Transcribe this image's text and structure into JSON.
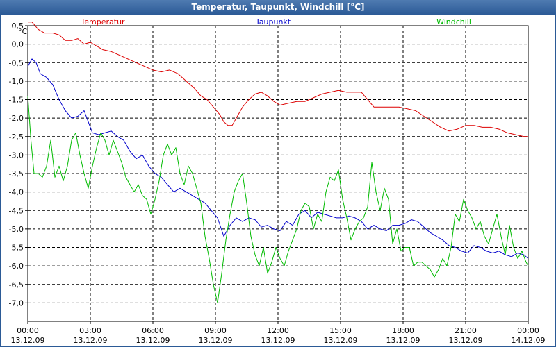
{
  "chart_data": {
    "type": "line",
    "title": "Temperatur, Taupunkt, Windchill [°C]",
    "ylabel": "°C",
    "ylim": [
      -7.5,
      0.5
    ],
    "yticks": [
      0.5,
      0.0,
      -0.5,
      -1.0,
      -1.5,
      -2.0,
      -2.5,
      -3.0,
      -3.5,
      -4.0,
      -4.5,
      -5.0,
      -5.5,
      -6.0,
      -6.5,
      -7.0
    ],
    "ytick_labels": [
      "0,5",
      "0,0",
      "-0,5",
      "-1,0",
      "-1,5",
      "-2,0",
      "-2,5",
      "-3,0",
      "-3,5",
      "-4,0",
      "-4,5",
      "-5,0",
      "-5,5",
      "-6,0",
      "-6,5",
      "-7,0"
    ],
    "xlim": [
      0,
      24
    ],
    "x_ticks": [
      {
        "x": 0,
        "time": "00:00",
        "date": "13.12.09"
      },
      {
        "x": 3,
        "time": "03:00",
        "date": "13.12.09"
      },
      {
        "x": 6,
        "time": "06:00",
        "date": "13.12.09"
      },
      {
        "x": 9,
        "time": "09:00",
        "date": "13.12.09"
      },
      {
        "x": 12,
        "time": "12:00",
        "date": "13.12.09"
      },
      {
        "x": 15,
        "time": "15:00",
        "date": "13.12.09"
      },
      {
        "x": 18,
        "time": "18:00",
        "date": "13.12.09"
      },
      {
        "x": 21,
        "time": "21:00",
        "date": "13.12.09"
      },
      {
        "x": 24,
        "time": "00:00",
        "date": "14.12.09"
      }
    ],
    "grid": true,
    "series": [
      {
        "name": "Temperatur",
        "color": "#dd0000",
        "x": [
          0,
          0.2,
          0.5,
          0.8,
          1.2,
          1.5,
          1.8,
          2.1,
          2.4,
          2.7,
          3.0,
          3.3,
          3.6,
          4.0,
          4.4,
          4.8,
          5.2,
          5.6,
          6.0,
          6.4,
          6.8,
          7.2,
          7.6,
          8.0,
          8.3,
          8.6,
          8.9,
          9.2,
          9.4,
          9.6,
          9.8,
          10.0,
          10.3,
          10.6,
          10.9,
          11.2,
          11.5,
          11.8,
          12.1,
          12.5,
          12.9,
          13.3,
          13.7,
          14.1,
          14.5,
          14.9,
          15.3,
          15.7,
          16.0,
          16.3,
          16.6,
          17.0,
          17.4,
          17.8,
          18.2,
          18.6,
          19.0,
          19.4,
          19.8,
          20.2,
          20.6,
          21.0,
          21.4,
          21.8,
          22.2,
          22.6,
          23.0,
          23.4,
          23.8,
          24.0
        ],
        "values": [
          0.6,
          0.6,
          0.4,
          0.3,
          0.3,
          0.25,
          0.1,
          0.1,
          0.15,
          0.0,
          0.05,
          -0.05,
          -0.15,
          -0.2,
          -0.3,
          -0.4,
          -0.5,
          -0.6,
          -0.7,
          -0.75,
          -0.7,
          -0.8,
          -1.0,
          -1.2,
          -1.4,
          -1.5,
          -1.7,
          -1.9,
          -2.1,
          -2.2,
          -2.2,
          -2.0,
          -1.7,
          -1.5,
          -1.35,
          -1.3,
          -1.4,
          -1.55,
          -1.65,
          -1.6,
          -1.55,
          -1.55,
          -1.45,
          -1.35,
          -1.3,
          -1.25,
          -1.3,
          -1.3,
          -1.3,
          -1.5,
          -1.7,
          -1.7,
          -1.7,
          -1.7,
          -1.75,
          -1.8,
          -1.95,
          -2.1,
          -2.25,
          -2.35,
          -2.3,
          -2.2,
          -2.2,
          -2.25,
          -2.25,
          -2.3,
          -2.4,
          -2.45,
          -2.5,
          -2.5
        ]
      },
      {
        "name": "Taupunkt",
        "color": "#0000cc",
        "x": [
          0,
          0.2,
          0.4,
          0.6,
          0.9,
          1.2,
          1.5,
          1.8,
          2.1,
          2.4,
          2.7,
          2.9,
          3.1,
          3.4,
          3.7,
          4.0,
          4.3,
          4.6,
          4.9,
          5.2,
          5.5,
          5.8,
          6.1,
          6.4,
          6.7,
          7.0,
          7.3,
          7.6,
          7.9,
          8.2,
          8.5,
          8.8,
          9.1,
          9.4,
          9.7,
          10.0,
          10.3,
          10.6,
          10.9,
          11.2,
          11.5,
          11.8,
          12.1,
          12.4,
          12.7,
          13.0,
          13.3,
          13.6,
          13.9,
          14.2,
          14.5,
          14.8,
          15.1,
          15.4,
          15.7,
          16.0,
          16.3,
          16.6,
          16.9,
          17.2,
          17.5,
          17.8,
          18.1,
          18.4,
          18.7,
          19.0,
          19.3,
          19.6,
          19.9,
          20.2,
          20.5,
          20.8,
          21.1,
          21.4,
          21.7,
          22.0,
          22.3,
          22.6,
          22.9,
          23.2,
          23.5,
          23.8,
          24.0
        ],
        "values": [
          -0.6,
          -0.4,
          -0.5,
          -0.8,
          -0.9,
          -1.1,
          -1.5,
          -1.8,
          -2.0,
          -1.95,
          -1.8,
          -2.1,
          -2.4,
          -2.45,
          -2.4,
          -2.35,
          -2.5,
          -2.6,
          -2.9,
          -3.1,
          -3.0,
          -3.3,
          -3.5,
          -3.6,
          -3.8,
          -4.0,
          -3.9,
          -4.0,
          -4.1,
          -4.2,
          -4.3,
          -4.5,
          -4.7,
          -5.2,
          -4.9,
          -4.7,
          -4.8,
          -4.7,
          -4.75,
          -4.95,
          -4.9,
          -5.0,
          -5.05,
          -4.8,
          -4.9,
          -4.6,
          -4.5,
          -4.7,
          -4.55,
          -4.6,
          -4.65,
          -4.7,
          -4.7,
          -4.65,
          -4.7,
          -4.8,
          -5.0,
          -4.9,
          -5.0,
          -5.05,
          -4.9,
          -4.9,
          -4.85,
          -4.75,
          -4.8,
          -4.95,
          -5.1,
          -5.2,
          -5.3,
          -5.45,
          -5.5,
          -5.6,
          -5.65,
          -5.45,
          -5.5,
          -5.6,
          -5.65,
          -5.6,
          -5.7,
          -5.75,
          -5.65,
          -5.7,
          -5.8
        ]
      },
      {
        "name": "Windchill",
        "color": "#00bb00",
        "x": [
          0,
          0.15,
          0.3,
          0.5,
          0.7,
          0.9,
          1.1,
          1.3,
          1.5,
          1.7,
          1.9,
          2.1,
          2.3,
          2.5,
          2.7,
          2.9,
          3.1,
          3.3,
          3.5,
          3.7,
          3.9,
          4.1,
          4.3,
          4.5,
          4.7,
          4.9,
          5.1,
          5.3,
          5.5,
          5.7,
          5.9,
          6.1,
          6.3,
          6.5,
          6.7,
          6.9,
          7.1,
          7.3,
          7.5,
          7.7,
          7.9,
          8.1,
          8.3,
          8.5,
          8.7,
          8.9,
          9.1,
          9.3,
          9.5,
          9.7,
          9.9,
          10.1,
          10.3,
          10.5,
          10.7,
          10.9,
          11.1,
          11.3,
          11.5,
          11.7,
          11.9,
          12.1,
          12.3,
          12.5,
          12.7,
          12.9,
          13.1,
          13.3,
          13.5,
          13.7,
          13.9,
          14.1,
          14.3,
          14.5,
          14.7,
          14.9,
          15.1,
          15.3,
          15.5,
          15.7,
          15.9,
          16.1,
          16.3,
          16.5,
          16.7,
          16.9,
          17.1,
          17.3,
          17.5,
          17.7,
          17.9,
          18.1,
          18.3,
          18.5,
          18.7,
          18.9,
          19.1,
          19.3,
          19.5,
          19.7,
          19.9,
          20.1,
          20.3,
          20.5,
          20.7,
          20.9,
          21.1,
          21.3,
          21.5,
          21.7,
          21.9,
          22.1,
          22.3,
          22.5,
          22.7,
          22.9,
          23.1,
          23.3,
          23.5,
          23.7,
          23.9,
          24.0
        ],
        "values": [
          -1.4,
          -2.6,
          -3.5,
          -3.5,
          -3.6,
          -3.3,
          -2.6,
          -3.6,
          -3.3,
          -3.7,
          -3.3,
          -2.6,
          -2.4,
          -3.0,
          -3.5,
          -3.9,
          -3.3,
          -2.8,
          -2.4,
          -2.6,
          -3.0,
          -2.6,
          -2.9,
          -3.2,
          -3.6,
          -3.8,
          -4.0,
          -3.8,
          -4.1,
          -4.2,
          -4.6,
          -4.2,
          -3.7,
          -3.0,
          -2.7,
          -3.0,
          -2.8,
          -3.5,
          -3.8,
          -3.3,
          -3.5,
          -3.9,
          -4.3,
          -5.2,
          -5.8,
          -6.5,
          -7.0,
          -6.2,
          -5.3,
          -4.6,
          -4.0,
          -3.7,
          -3.5,
          -4.3,
          -5.2,
          -5.7,
          -6.0,
          -5.5,
          -6.2,
          -5.9,
          -5.5,
          -5.8,
          -6.0,
          -5.6,
          -5.3,
          -5.0,
          -4.5,
          -4.3,
          -4.4,
          -5.0,
          -4.6,
          -4.8,
          -4.0,
          -3.6,
          -3.7,
          -3.4,
          -4.2,
          -4.7,
          -5.3,
          -5.0,
          -4.8,
          -4.7,
          -4.4,
          -3.2,
          -4.0,
          -4.5,
          -3.9,
          -4.2,
          -5.4,
          -5.0,
          -5.6,
          -5.5,
          -5.5,
          -6.0,
          -5.9,
          -5.9,
          -6.0,
          -6.1,
          -6.3,
          -6.1,
          -5.8,
          -6.0,
          -5.5,
          -4.6,
          -4.8,
          -4.2,
          -4.5,
          -4.7,
          -5.0,
          -4.8,
          -5.2,
          -5.4,
          -5.0,
          -4.6,
          -5.2,
          -5.7,
          -4.9,
          -5.5,
          -5.8,
          -5.6,
          -5.9,
          -6.0
        ]
      }
    ]
  }
}
